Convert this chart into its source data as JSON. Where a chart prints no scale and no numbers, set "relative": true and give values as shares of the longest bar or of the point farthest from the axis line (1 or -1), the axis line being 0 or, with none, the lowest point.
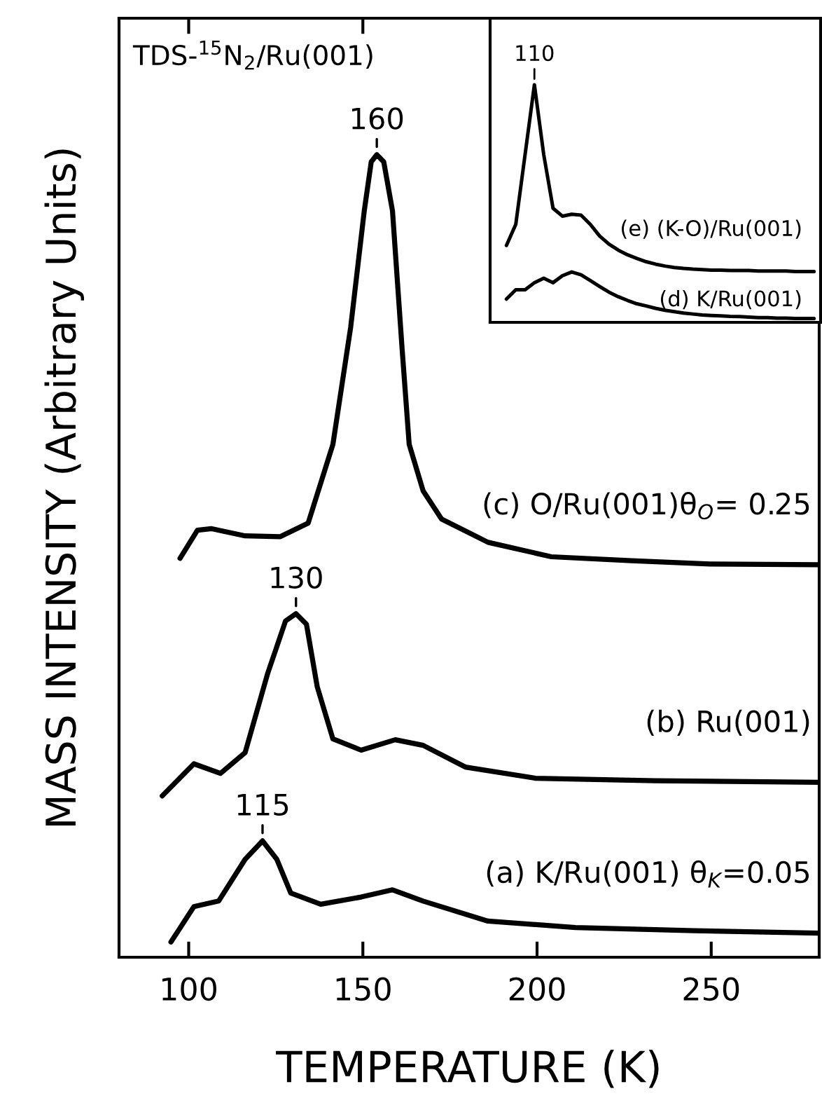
{
  "chart_data": [
    {
      "type": "line",
      "title": "TDS-$^{15}$N$_{2}$/Ru(001)",
      "xlabel": "TEMPERATURE (K)",
      "ylabel": "MASS INTENSITY (Arbitrary Units)",
      "relative": true,
      "xlim": [
        80,
        281
      ],
      "xticks": [
        100,
        150,
        200,
        250
      ],
      "legend": false,
      "grid": false,
      "marker": "none",
      "line_style": "solid",
      "series": [
        {
          "name": "(c) O/Ru(001)θ$_{O}$= 0.25",
          "color": "#000000",
          "x": [
            97.5,
            102.5,
            106.6,
            116.2,
            126.3,
            134.3,
            141.4,
            146.5,
            150.4,
            152.4,
            154.0,
            156.0,
            158.5,
            161.3,
            163.3,
            167.3,
            172.6,
            185.9,
            204.1,
            227.1,
            249.7,
            281
          ],
          "values": [
            0.497,
            0.532,
            0.534,
            0.525,
            0.524,
            0.541,
            0.639,
            0.785,
            0.93,
            0.991,
            1.0,
            0.991,
            0.93,
            0.756,
            0.639,
            0.581,
            0.546,
            0.517,
            0.499,
            0.494,
            0.49,
            0.489
          ]
        },
        {
          "name": "(b) Ru(001)",
          "color": "#000000",
          "x": [
            92.4,
            101.5,
            109.1,
            116.2,
            122.7,
            127.8,
            130.8,
            133.8,
            136.9,
            141.4,
            149.5,
            159.3,
            167.3,
            179.4,
            199.6,
            233.9,
            281
          ],
          "values": [
            0.201,
            0.241,
            0.229,
            0.255,
            0.354,
            0.419,
            0.428,
            0.415,
            0.337,
            0.272,
            0.258,
            0.271,
            0.264,
            0.237,
            0.223,
            0.22,
            0.218
          ]
        },
        {
          "name": "(a) K/Ru(001) θ$_{K}$=0.05",
          "color": "#000000",
          "x": [
            94.9,
            101.5,
            108.6,
            116.2,
            121.2,
            125.3,
            129.3,
            137.9,
            149.5,
            158.5,
            167.3,
            185.9,
            211.0,
            245.2,
            281
          ],
          "values": [
            0.019,
            0.063,
            0.07,
            0.122,
            0.145,
            0.122,
            0.08,
            0.066,
            0.075,
            0.084,
            0.07,
            0.045,
            0.037,
            0.033,
            0.03
          ]
        }
      ],
      "annotations": [
        {
          "text": "160",
          "x": 154.0,
          "y": 1.0
        },
        {
          "text": "130",
          "x": 130.8,
          "y": 0.428
        },
        {
          "text": "115",
          "x": 121.2,
          "y": 0.145
        }
      ]
    },
    {
      "type": "line",
      "relative": true,
      "legend": false,
      "grid": false,
      "marker": "none",
      "line_style": "solid",
      "categories": [
        null,
        null,
        null,
        null,
        null,
        null,
        null,
        null,
        null,
        null,
        null,
        null,
        null,
        null,
        null,
        null,
        null,
        null,
        null,
        null,
        null,
        null,
        null,
        null,
        null,
        null,
        null,
        null,
        null,
        null,
        null,
        null,
        null,
        null
      ],
      "series": [
        {
          "name": "(e) (K-O)/Ru(001)",
          "color": "#000000",
          "values": [
            0.324,
            0.412,
            0.706,
            1.0,
            0.706,
            0.48,
            0.447,
            0.455,
            0.451,
            0.412,
            0.363,
            0.329,
            0.304,
            0.284,
            0.269,
            0.255,
            0.245,
            0.237,
            0.231,
            0.227,
            0.224,
            0.222,
            0.22,
            0.22,
            0.218,
            0.218,
            0.218,
            0.216,
            0.216,
            0.216,
            0.216,
            0.214,
            0.214,
            0.214
          ]
        },
        {
          "name": "(d) K/Ru(001)",
          "color": "#000000",
          "values": [
            0.098,
            0.137,
            0.137,
            0.167,
            0.186,
            0.167,
            0.196,
            0.212,
            0.2,
            0.176,
            0.151,
            0.127,
            0.108,
            0.092,
            0.078,
            0.069,
            0.059,
            0.051,
            0.045,
            0.039,
            0.035,
            0.031,
            0.029,
            0.027,
            0.025,
            0.024,
            0.022,
            0.02,
            0.02,
            0.018,
            0.018,
            0.016,
            0.016,
            0.016
          ]
        }
      ],
      "annotations": [
        "110"
      ]
    }
  ]
}
